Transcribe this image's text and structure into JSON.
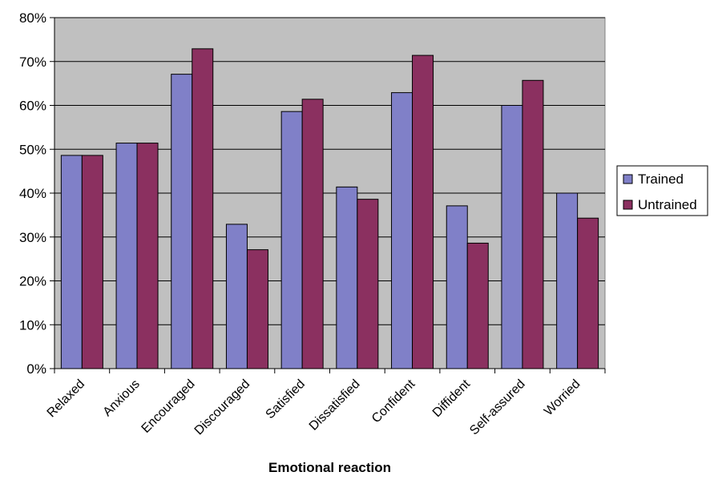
{
  "chart_data": {
    "type": "bar",
    "title": "",
    "xlabel": "Emotional reaction",
    "ylabel": "",
    "ylim": [
      0,
      80
    ],
    "ytick_values": [
      0,
      10,
      20,
      30,
      40,
      50,
      60,
      70,
      80
    ],
    "ytick_labels": [
      "0%",
      "10%",
      "20%",
      "30%",
      "40%",
      "50%",
      "60%",
      "70%",
      "80%"
    ],
    "categories": [
      "Relaxed",
      "Anxious",
      "Encouraged",
      "Discouraged",
      "Satisfied",
      "Dissatisfied",
      "Confident",
      "Diffident",
      "Self-assured",
      "Worried"
    ],
    "series": [
      {
        "name": "Trained",
        "color": "#8080c8",
        "values": [
          48.6,
          51.4,
          67.1,
          32.9,
          58.6,
          41.4,
          62.9,
          37.1,
          60.0,
          40.0
        ]
      },
      {
        "name": "Untrained",
        "color": "#8b3060",
        "values": [
          48.6,
          51.4,
          72.9,
          27.1,
          61.4,
          38.6,
          71.4,
          28.6,
          65.7,
          34.3
        ]
      }
    ],
    "grid": true,
    "plot_background": "#c0c0c0",
    "legend_position": "right"
  }
}
